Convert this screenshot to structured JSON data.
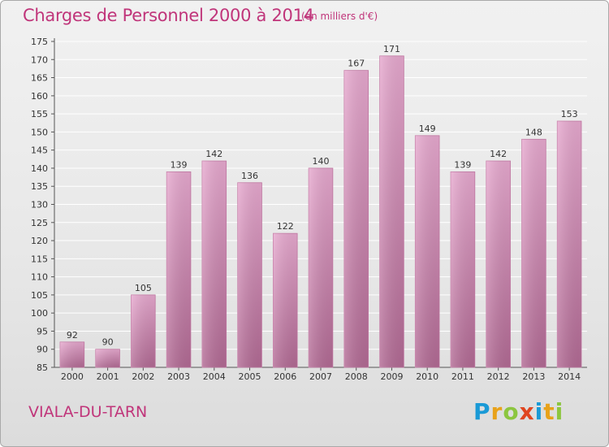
{
  "header": {
    "title": "Charges de Personnel 2000 à 2014",
    "subtitle": "(en milliers d'€)"
  },
  "footer": {
    "place": "VIALA-DU-TARN",
    "logo": "Proxiti",
    "logo_letters": [
      "P",
      "r",
      "o",
      "x",
      "i",
      "t",
      "i"
    ],
    "logo_colors": [
      "#1a9ad6",
      "#e8a21a",
      "#8cc63f",
      "#e0451f",
      "#1a9ad6",
      "#e8a21a",
      "#8cc63f"
    ]
  },
  "chart_data": {
    "type": "bar",
    "title": "Charges de Personnel 2000 à 2014",
    "subtitle": "(en milliers d'€)",
    "categories": [
      "2000",
      "2001",
      "2002",
      "2003",
      "2004",
      "2005",
      "2006",
      "2007",
      "2008",
      "2009",
      "2010",
      "2011",
      "2012",
      "2013",
      "2014"
    ],
    "values": [
      92,
      90,
      105,
      139,
      142,
      136,
      122,
      140,
      167,
      171,
      149,
      139,
      142,
      148,
      153
    ],
    "ylim": [
      85,
      175
    ],
    "ytick_step": 5,
    "grid": true,
    "bar_color": "#d98cb8",
    "xlabel": "",
    "ylabel": ""
  }
}
